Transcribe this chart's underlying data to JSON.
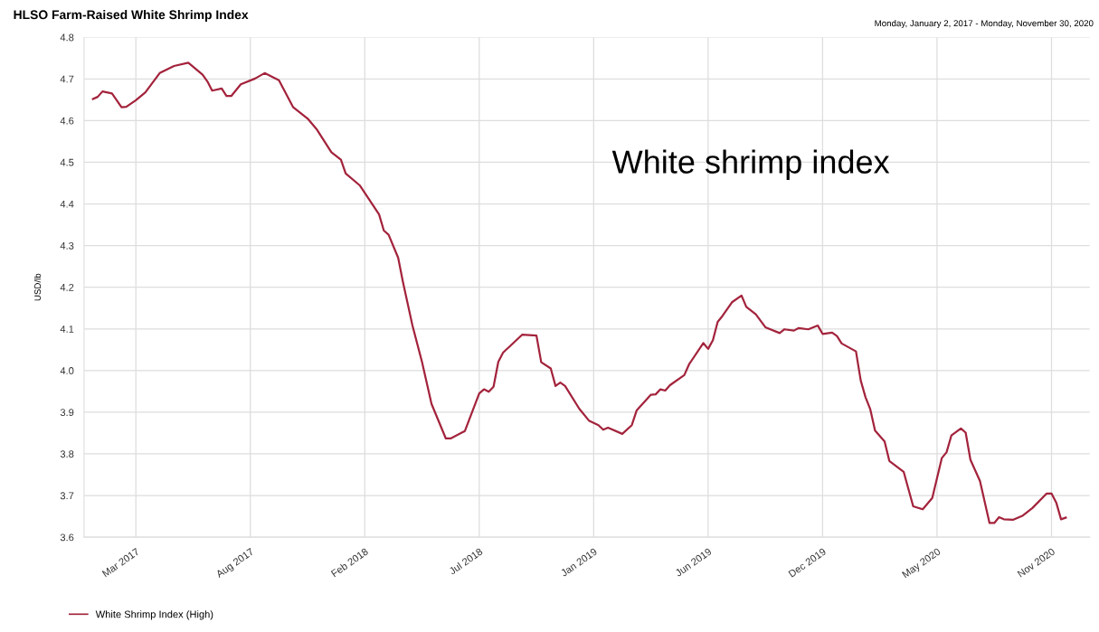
{
  "chart_data": {
    "type": "line",
    "title": "HLSO Farm-Raised White Shrimp Index",
    "subtitle": "Monday, January 2, 2017 - Monday, November 30, 2020",
    "ylabel": "USD/lb",
    "annotations": [
      "White shrimp index"
    ],
    "x": [
      "2017-01-02",
      "2017-01-09",
      "2017-01-16",
      "2017-01-30",
      "2017-02-13",
      "2017-02-20",
      "2017-03-06",
      "2017-03-20",
      "2017-04-10",
      "2017-05-01",
      "2017-05-22",
      "2017-06-12",
      "2017-06-19",
      "2017-06-26",
      "2017-07-10",
      "2017-07-17",
      "2017-07-24",
      "2017-08-07",
      "2017-08-28",
      "2017-09-11",
      "2017-10-02",
      "2017-10-23",
      "2017-11-13",
      "2017-11-27",
      "2017-12-18",
      "2018-01-01",
      "2018-01-08",
      "2018-01-29",
      "2018-02-26",
      "2018-03-05",
      "2018-03-12",
      "2018-03-26",
      "2018-04-02",
      "2018-04-16",
      "2018-04-30",
      "2018-05-14",
      "2018-06-04",
      "2018-06-11",
      "2018-07-02",
      "2018-07-23",
      "2018-07-30",
      "2018-08-06",
      "2018-08-13",
      "2018-08-20",
      "2018-08-27",
      "2018-09-24",
      "2018-10-15",
      "2018-10-22",
      "2018-11-05",
      "2018-11-12",
      "2018-11-19",
      "2018-11-26",
      "2018-12-17",
      "2018-12-31",
      "2019-01-14",
      "2019-01-21",
      "2019-01-28",
      "2019-02-18",
      "2019-03-04",
      "2019-03-11",
      "2019-04-01",
      "2019-04-08",
      "2019-04-15",
      "2019-04-22",
      "2019-04-29",
      "2019-05-20",
      "2019-05-27",
      "2019-06-17",
      "2019-06-24",
      "2019-07-01",
      "2019-07-08",
      "2019-07-15",
      "2019-07-29",
      "2019-08-12",
      "2019-08-19",
      "2019-09-02",
      "2019-09-16",
      "2019-10-07",
      "2019-10-14",
      "2019-10-28",
      "2019-11-04",
      "2019-11-18",
      "2019-12-02",
      "2019-12-09",
      "2019-12-23",
      "2019-12-30",
      "2020-01-06",
      "2020-01-27",
      "2020-02-03",
      "2020-02-10",
      "2020-02-17",
      "2020-02-24",
      "2020-03-09",
      "2020-03-16",
      "2020-04-06",
      "2020-04-20",
      "2020-05-04",
      "2020-05-18",
      "2020-06-01",
      "2020-06-08",
      "2020-06-15",
      "2020-06-29",
      "2020-07-06",
      "2020-07-13",
      "2020-07-27",
      "2020-08-10",
      "2020-08-17",
      "2020-08-24",
      "2020-08-31",
      "2020-09-14",
      "2020-09-28",
      "2020-10-12",
      "2020-11-02",
      "2020-11-09",
      "2020-11-16",
      "2020-11-23",
      "2020-11-30"
    ],
    "series": [
      {
        "name": "White Shrimp Index (High)",
        "color": "#a3233c",
        "values": [
          4.652,
          4.657,
          4.67,
          4.665,
          4.632,
          4.633,
          4.649,
          4.668,
          4.714,
          4.731,
          4.739,
          4.71,
          4.694,
          4.672,
          4.677,
          4.659,
          4.659,
          4.687,
          4.701,
          4.714,
          4.697,
          4.632,
          4.605,
          4.578,
          4.524,
          4.506,
          4.473,
          4.444,
          4.375,
          4.336,
          4.326,
          4.271,
          4.213,
          4.108,
          4.021,
          3.92,
          3.837,
          3.837,
          3.855,
          3.945,
          3.955,
          3.949,
          3.961,
          4.021,
          4.043,
          4.086,
          4.084,
          4.02,
          4.005,
          3.963,
          3.971,
          3.963,
          3.908,
          3.88,
          3.869,
          3.858,
          3.863,
          3.848,
          3.869,
          3.904,
          3.942,
          3.943,
          3.955,
          3.952,
          3.965,
          3.989,
          4.015,
          4.066,
          4.052,
          4.073,
          4.117,
          4.131,
          4.164,
          4.18,
          4.153,
          4.135,
          4.104,
          4.09,
          4.099,
          4.096,
          4.102,
          4.099,
          4.108,
          4.088,
          4.091,
          4.083,
          4.065,
          4.046,
          3.976,
          3.936,
          3.907,
          3.856,
          3.83,
          3.783,
          3.757,
          3.674,
          3.667,
          3.694,
          3.79,
          3.804,
          3.844,
          3.861,
          3.851,
          3.786,
          3.735,
          3.634,
          3.634,
          3.648,
          3.643,
          3.642,
          3.652,
          3.67,
          3.705,
          3.705,
          3.683,
          3.643,
          3.647
        ]
      }
    ],
    "xlim": [
      "2016-12-20",
      "2021-01-04"
    ],
    "xticks": [
      {
        "value": "2017-03-06",
        "label": "Mar 2017"
      },
      {
        "value": "2017-08-21",
        "label": "Aug 2017"
      },
      {
        "value": "2018-02-05",
        "label": "Feb 2018"
      },
      {
        "value": "2018-07-23",
        "label": "Jul 2018"
      },
      {
        "value": "2019-01-07",
        "label": "Jan 2019"
      },
      {
        "value": "2019-06-24",
        "label": "Jun 2019"
      },
      {
        "value": "2019-12-09",
        "label": "Dec 2019"
      },
      {
        "value": "2020-05-25",
        "label": "May 2020"
      },
      {
        "value": "2020-11-09",
        "label": "Nov 2020"
      }
    ],
    "ylim": [
      3.6,
      4.8
    ],
    "yticks": [
      {
        "value": 3.6,
        "label": "3.6"
      },
      {
        "value": 3.7,
        "label": "3.7"
      },
      {
        "value": 3.8,
        "label": "3.8"
      },
      {
        "value": 3.9,
        "label": "3.9"
      },
      {
        "value": 4.0,
        "label": "4.0"
      },
      {
        "value": 4.1,
        "label": "4.1"
      },
      {
        "value": 4.2,
        "label": "4.2"
      },
      {
        "value": 4.3,
        "label": "4.3"
      },
      {
        "value": 4.4,
        "label": "4.4"
      },
      {
        "value": 4.5,
        "label": "4.5"
      },
      {
        "value": 4.6,
        "label": "4.6"
      },
      {
        "value": 4.7,
        "label": "4.7"
      },
      {
        "value": 4.8,
        "label": "4.8"
      }
    ],
    "grid": true,
    "legend": "bottom left",
    "line_style": "solid"
  }
}
